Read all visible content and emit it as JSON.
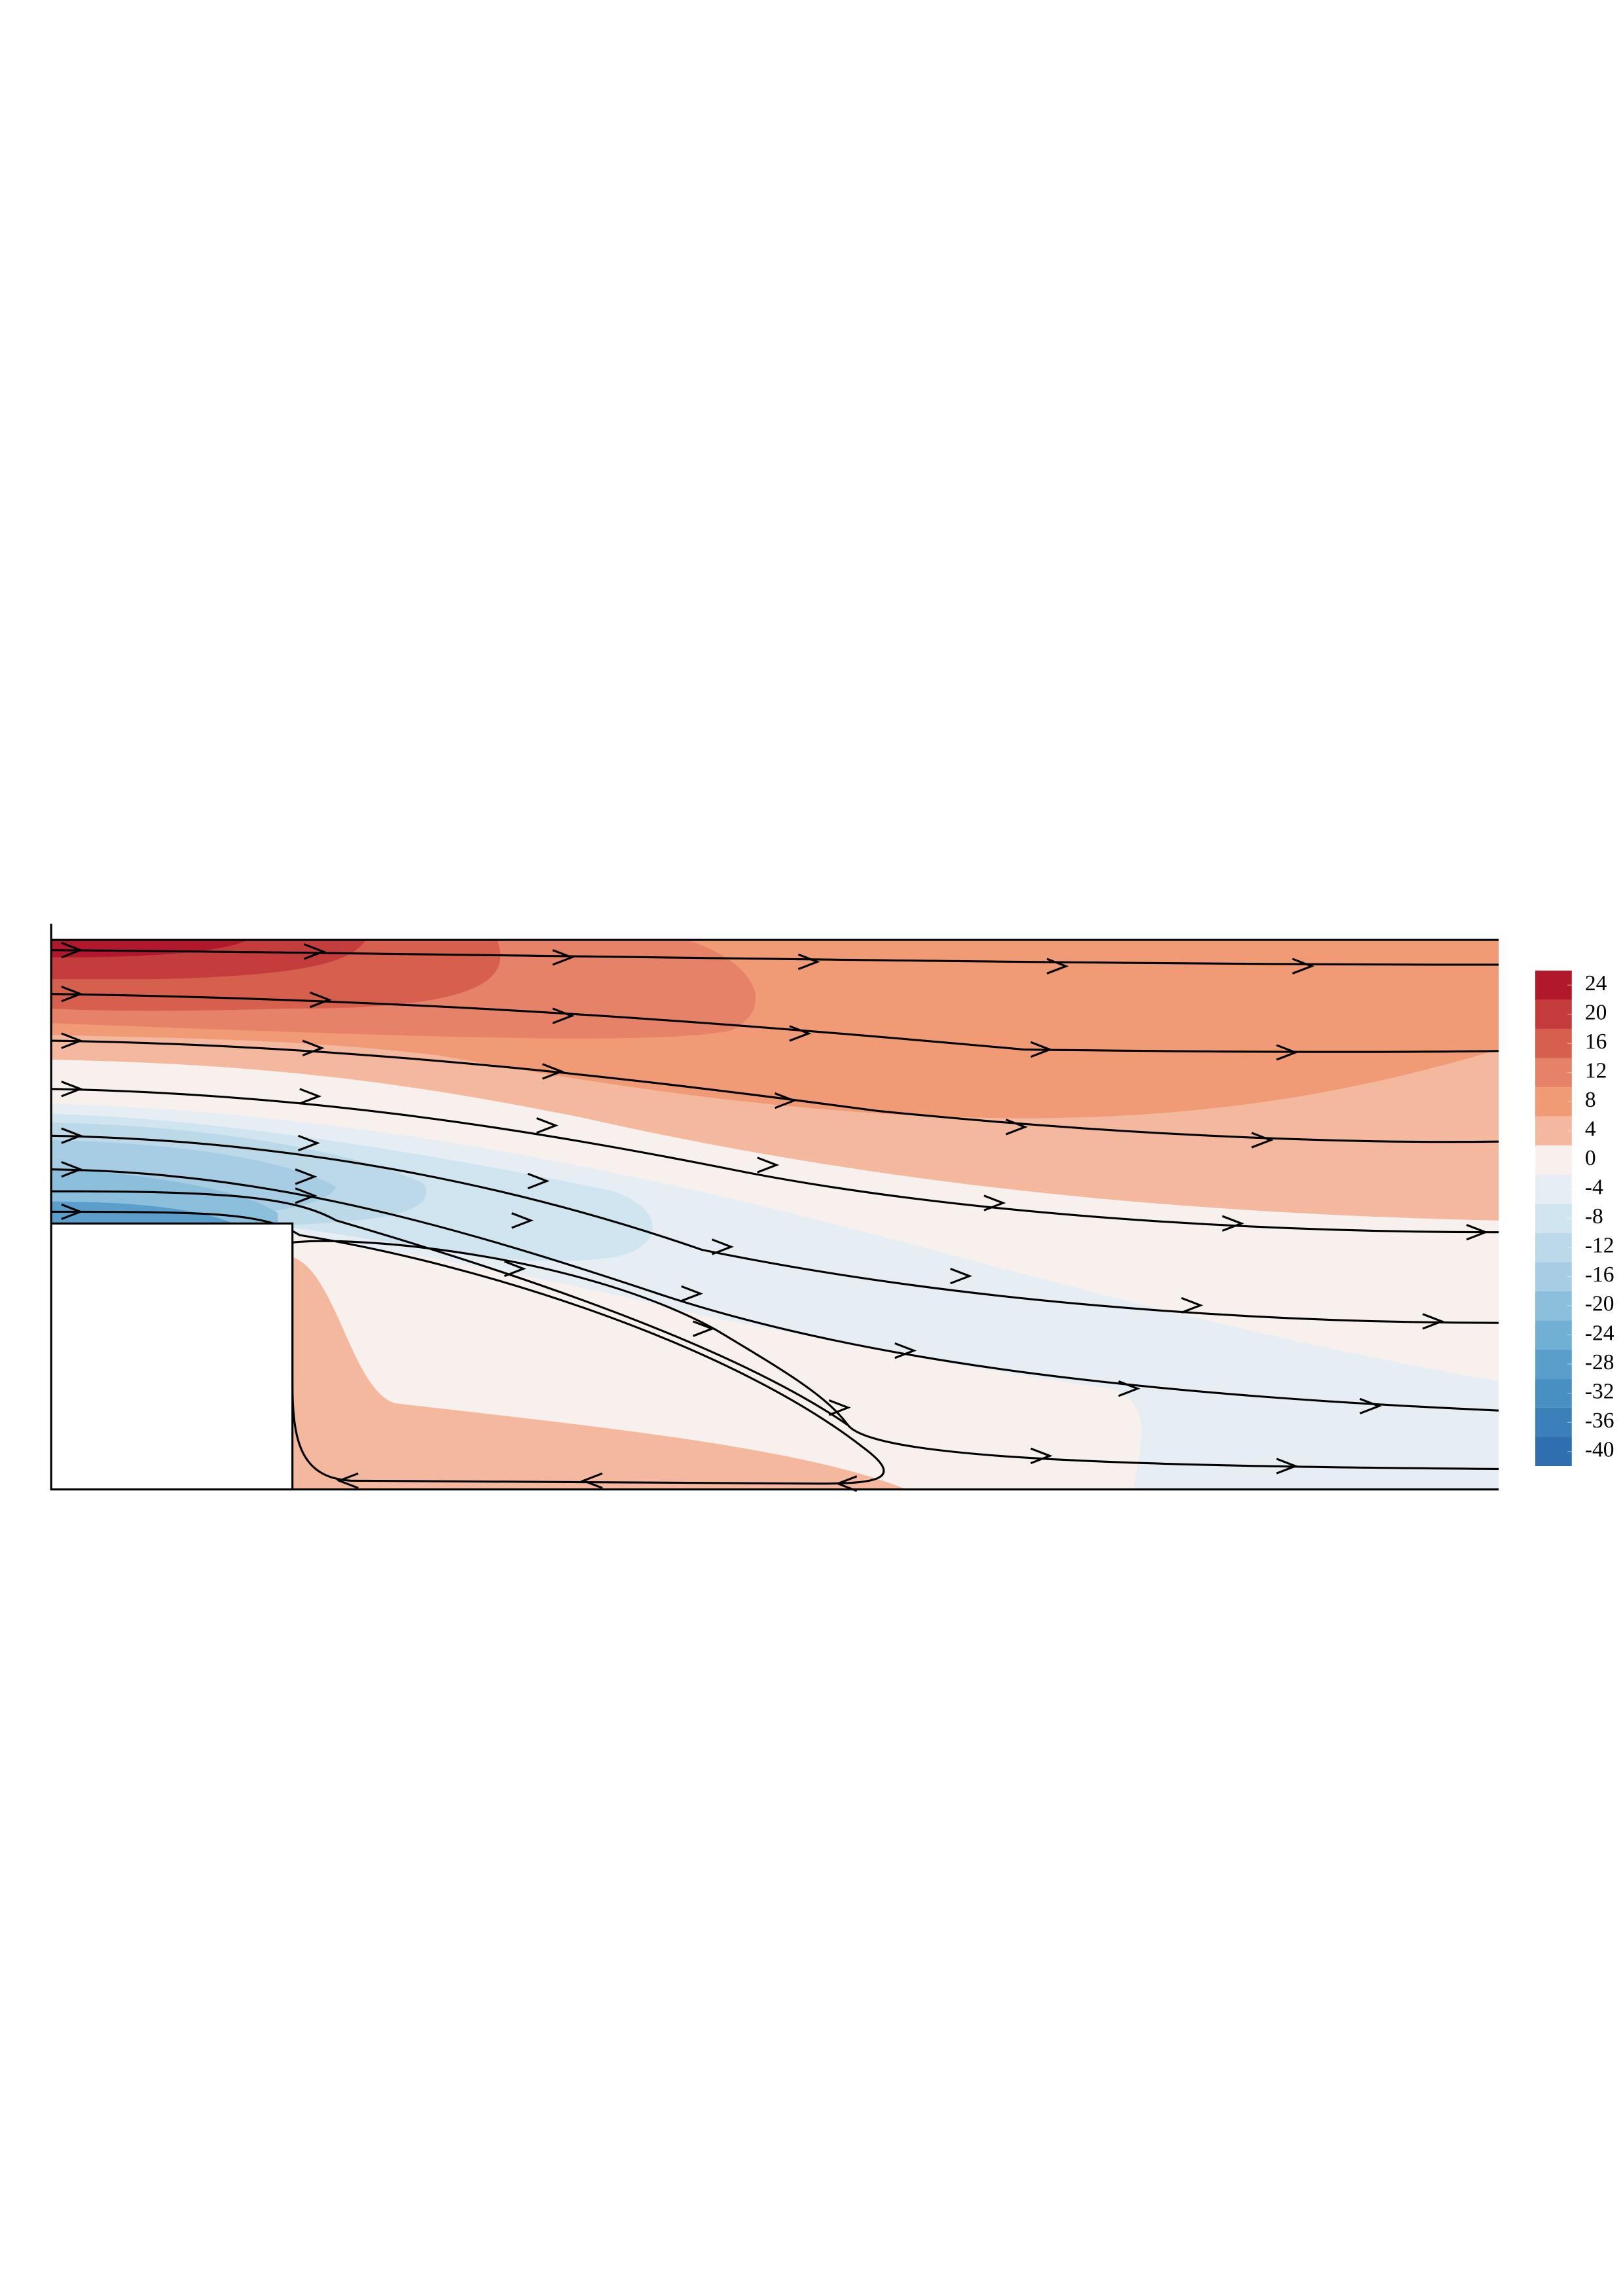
{
  "chart_data": {
    "type": "contour",
    "zlim": [
      -42,
      26
    ],
    "levels": [
      26,
      22,
      18,
      14,
      10,
      6,
      2,
      -2,
      -6,
      -10,
      -14,
      -18,
      -22,
      -26,
      -30,
      -34,
      -38,
      -42
    ],
    "colors": [
      "#b2182b",
      "#c43c3c",
      "#d6604d",
      "#e58267",
      "#f09a76",
      "#f4b89f",
      "#f7f0ec",
      "#e6eef4",
      "#d1e5f0",
      "#bcd9e9",
      "#a6cde3",
      "#8cbfdc",
      "#71afd4",
      "#5a9fcb",
      "#488fc2",
      "#3c80ba",
      "#2f6fb0"
    ],
    "zticks": [
      24,
      20,
      16,
      12,
      8,
      4,
      0,
      -4,
      -8,
      -12,
      -16,
      -20,
      -24,
      -28,
      -32,
      -36,
      -40
    ]
  }
}
